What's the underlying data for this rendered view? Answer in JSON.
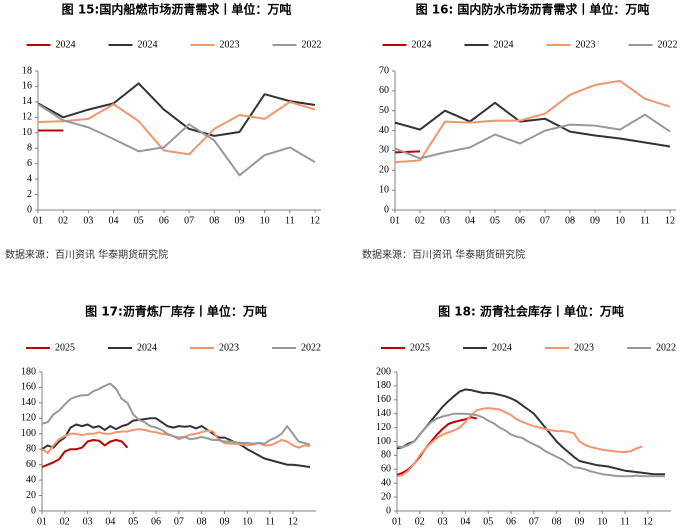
{
  "chart_data": [
    {
      "type": "line",
      "title": "图 15:国内船燃市场沥青需求丨单位：万吨",
      "source": "数据来源：百川资讯 华泰期货研究院",
      "categories": [
        "01",
        "02",
        "03",
        "04",
        "05",
        "06",
        "07",
        "08",
        "09",
        "10",
        "11",
        "12"
      ],
      "ylim": [
        0,
        18
      ],
      "yticks": [
        0,
        2,
        4,
        6,
        8,
        10,
        12,
        14,
        16,
        18
      ],
      "series": [
        {
          "name": "2024",
          "color": "#c00000",
          "values": [
            10.3,
            10.3,
            null,
            null,
            null,
            null,
            null,
            null,
            null,
            null,
            null,
            null
          ]
        },
        {
          "name": "2024",
          "color": "#333333",
          "values": [
            13.8,
            12.0,
            13.0,
            13.8,
            16.4,
            13.0,
            10.5,
            9.6,
            10.1,
            15.0,
            14.1,
            13.6
          ]
        },
        {
          "name": "2023",
          "color": "#f4956b",
          "values": [
            11.4,
            11.5,
            11.8,
            13.7,
            11.5,
            7.7,
            7.2,
            10.5,
            12.3,
            11.8,
            14.0,
            13.0
          ]
        },
        {
          "name": "2022",
          "color": "#999999",
          "values": [
            13.7,
            11.6,
            10.7,
            9.2,
            7.6,
            8.1,
            11.1,
            9.0,
            4.5,
            7.1,
            8.1,
            6.2
          ]
        }
      ]
    },
    {
      "type": "line",
      "title": "图 16: 国内防水市场沥青需求丨单位：万吨",
      "source": "数据来源：百川资讯 华泰期货研究院",
      "categories": [
        "01",
        "02",
        "03",
        "04",
        "05",
        "06",
        "07",
        "08",
        "09",
        "10",
        "11",
        "12"
      ],
      "ylim": [
        0,
        70
      ],
      "yticks": [
        0,
        10,
        20,
        30,
        40,
        50,
        60,
        70
      ],
      "series": [
        {
          "name": "2024",
          "color": "#c00000",
          "values": [
            29,
            29.5,
            null,
            null,
            null,
            null,
            null,
            null,
            null,
            null,
            null,
            null
          ]
        },
        {
          "name": "2024",
          "color": "#333333",
          "values": [
            44,
            40.5,
            50,
            44.5,
            54,
            44.5,
            46,
            39.5,
            37.5,
            36,
            34,
            32
          ]
        },
        {
          "name": "2023",
          "color": "#f4956b",
          "values": [
            24,
            25,
            44.5,
            44,
            45,
            45,
            48.5,
            58,
            63,
            65,
            56,
            52
          ]
        },
        {
          "name": "2022",
          "color": "#999999",
          "values": [
            31,
            26,
            29,
            31.5,
            38,
            33.5,
            40,
            43,
            42.5,
            40.5,
            48,
            39.5
          ]
        }
      ]
    },
    {
      "type": "line",
      "title": "图 17:沥青炼厂库存丨单位：万吨",
      "categories": [
        "01",
        null,
        null,
        null,
        "02",
        null,
        null,
        null,
        "03",
        null,
        null,
        null,
        "04",
        null,
        null,
        null,
        "05",
        null,
        null,
        null,
        "06",
        null,
        null,
        null,
        "07",
        null,
        null,
        null,
        "08",
        null,
        null,
        null,
        "09",
        null,
        null,
        null,
        "10",
        null,
        null,
        null,
        "11",
        null,
        null,
        null,
        "12",
        null,
        null,
        null
      ],
      "ylim": [
        0,
        180
      ],
      "yticks": [
        0,
        20,
        40,
        60,
        80,
        100,
        120,
        140,
        160,
        180
      ],
      "series": [
        {
          "name": "2025",
          "color": "#c00000",
          "values": [
            57,
            60,
            63,
            67,
            77,
            80,
            80,
            82,
            90,
            92,
            91,
            85,
            90,
            92,
            90,
            82,
            null,
            null,
            null,
            null,
            null,
            null,
            null,
            null,
            null,
            null,
            null,
            null,
            null,
            null,
            null,
            null,
            null,
            null,
            null,
            null,
            null,
            null,
            null,
            null,
            null,
            null,
            null,
            null,
            null,
            null,
            null,
            null
          ]
        },
        {
          "name": "2024",
          "color": "#333333",
          "values": [
            80,
            85,
            82,
            90,
            95,
            108,
            112,
            110,
            112,
            108,
            110,
            105,
            110,
            106,
            110,
            112,
            117,
            118,
            119,
            120,
            120,
            115,
            110,
            108,
            110,
            109,
            110,
            107,
            110,
            105,
            100,
            95,
            95,
            92,
            88,
            85,
            80,
            76,
            72,
            68,
            66,
            64,
            62,
            60,
            60,
            59,
            58,
            57
          ]
        },
        {
          "name": "2023",
          "color": "#f4956b",
          "values": [
            80,
            75,
            85,
            93,
            97,
            100,
            100,
            98,
            100,
            100,
            102,
            100,
            100,
            102,
            103,
            103,
            105,
            106,
            105,
            103,
            102,
            100,
            99,
            97,
            93,
            96,
            99,
            100,
            102,
            104,
            103,
            92,
            88,
            87,
            87,
            86,
            85,
            86,
            88,
            85,
            85,
            88,
            92,
            90,
            85,
            82,
            85,
            84
          ]
        },
        {
          "name": "2022",
          "color": "#999999",
          "values": [
            113,
            115,
            125,
            130,
            138,
            145,
            148,
            150,
            150,
            155,
            158,
            162,
            165,
            158,
            145,
            140,
            125,
            118,
            115,
            110,
            108,
            105,
            100,
            97,
            95,
            96,
            93,
            94,
            96,
            94,
            92,
            92,
            90,
            90,
            89,
            88,
            88,
            87,
            88,
            87,
            92,
            95,
            100,
            110,
            100,
            90,
            88,
            86
          ]
        }
      ]
    },
    {
      "type": "line",
      "title": "图 18: 沥青社会库存丨单位：万吨",
      "categories": [
        "01",
        null,
        null,
        null,
        "02",
        null,
        null,
        null,
        "03",
        null,
        null,
        null,
        "04",
        null,
        null,
        null,
        "05",
        null,
        null,
        null,
        "06",
        null,
        null,
        null,
        "07",
        null,
        null,
        null,
        "08",
        null,
        null,
        null,
        "09",
        null,
        null,
        null,
        "10",
        null,
        null,
        null,
        "11",
        null,
        null,
        null,
        "12",
        null,
        null,
        null
      ],
      "ylim": [
        0,
        200
      ],
      "yticks": [
        0,
        20,
        40,
        60,
        80,
        100,
        120,
        140,
        160,
        180,
        200
      ],
      "series": [
        {
          "name": "2025",
          "color": "#c00000",
          "values": [
            52,
            55,
            60,
            68,
            78,
            90,
            100,
            110,
            118,
            125,
            128,
            130,
            132,
            135,
            133,
            null,
            null,
            null,
            null,
            null,
            null,
            null,
            null,
            null,
            null,
            null,
            null,
            null,
            null,
            null,
            null,
            null,
            null,
            null,
            null,
            null,
            null,
            null,
            null,
            null,
            null,
            null,
            null,
            null,
            null,
            null,
            null,
            null
          ]
        },
        {
          "name": "2024",
          "color": "#333333",
          "values": [
            90,
            92,
            97,
            100,
            110,
            120,
            130,
            140,
            150,
            158,
            165,
            172,
            175,
            174,
            172,
            170,
            170,
            169,
            167,
            165,
            162,
            158,
            152,
            146,
            140,
            130,
            120,
            110,
            100,
            92,
            85,
            78,
            72,
            70,
            68,
            66,
            65,
            64,
            62,
            60,
            58,
            57,
            56,
            55,
            54,
            53,
            53,
            53
          ]
        },
        {
          "name": "2023",
          "color": "#f4956b",
          "values": [
            50,
            52,
            58,
            68,
            80,
            90,
            98,
            105,
            110,
            113,
            116,
            120,
            128,
            138,
            145,
            147,
            148,
            147,
            146,
            142,
            138,
            132,
            128,
            125,
            122,
            120,
            118,
            116,
            115,
            115,
            114,
            112,
            100,
            95,
            92,
            90,
            88,
            87,
            86,
            85,
            85,
            86,
            90,
            93,
            null,
            null,
            null,
            null
          ]
        },
        {
          "name": "2022",
          "color": "#999999",
          "values": [
            93,
            92,
            95,
            100,
            110,
            120,
            128,
            133,
            136,
            138,
            140,
            140,
            140,
            139,
            138,
            135,
            130,
            126,
            120,
            116,
            110,
            107,
            105,
            100,
            96,
            92,
            86,
            82,
            78,
            74,
            68,
            63,
            62,
            60,
            57,
            55,
            53,
            52,
            51,
            50,
            50,
            50,
            51,
            50,
            50,
            50,
            50,
            50
          ]
        }
      ]
    }
  ]
}
